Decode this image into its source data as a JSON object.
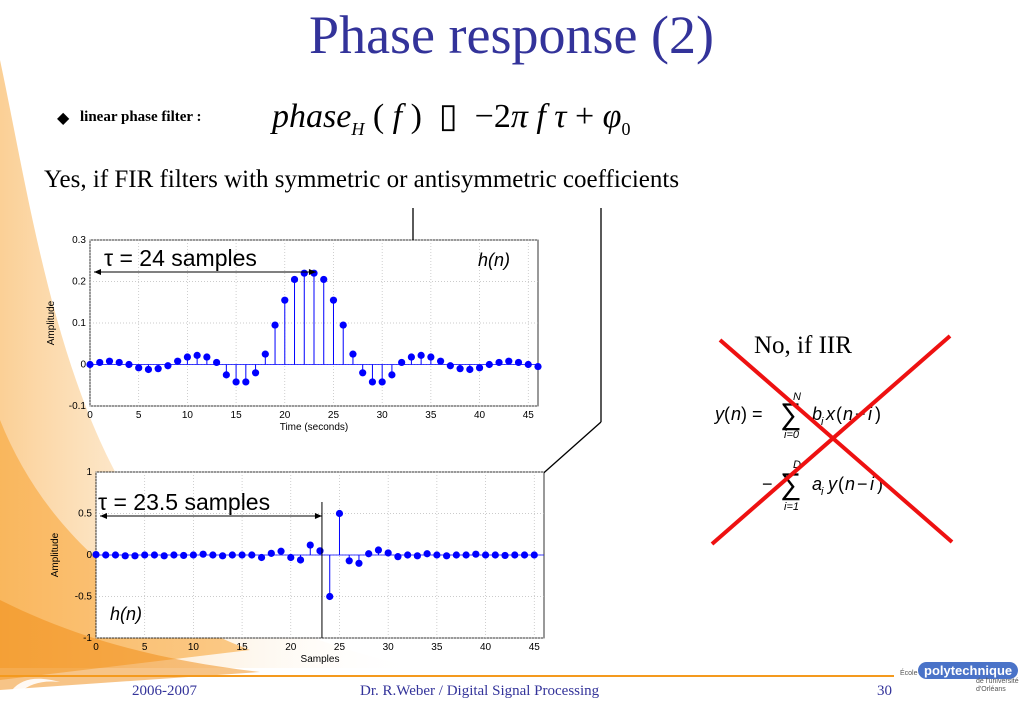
{
  "slide": {
    "title": "Phase response (2)",
    "bullet_label": "linear phase filter :",
    "yes_text": "Yes, if FIR filters with  symmetric or antisymmetric coefficients",
    "no_text": "No, if IIR"
  },
  "colors": {
    "title": "#33339a",
    "marker": "#0000ff",
    "cross": "#ee1111",
    "orange": "#f49a1e"
  },
  "chart_data": [
    {
      "type": "scatter",
      "style": "stem",
      "xlabel": "Time (seconds)",
      "ylabel": "Amplitude",
      "xlim": [
        0,
        46
      ],
      "ylim": [
        -0.1,
        0.3
      ],
      "xticks": [
        "0",
        "5",
        "10",
        "15",
        "20",
        "25",
        "30",
        "35",
        "40",
        "45"
      ],
      "yticks": [
        "-0.1",
        "0",
        "0.1",
        "0.2",
        "0.3"
      ],
      "tau_label": "τ = 24 samples",
      "h_label": "h(n)",
      "x": [
        0,
        1,
        2,
        3,
        4,
        5,
        6,
        7,
        8,
        9,
        10,
        11,
        12,
        13,
        14,
        15,
        16,
        17,
        18,
        19,
        20,
        21,
        22,
        23,
        24,
        25,
        26,
        27,
        28,
        29,
        30,
        31,
        32,
        33,
        34,
        35,
        36,
        37,
        38,
        39,
        40,
        41,
        42,
        43,
        44,
        45,
        46
      ],
      "values": [
        0,
        0.005,
        0.008,
        0.005,
        0,
        -0.008,
        -0.012,
        -0.01,
        -0.003,
        0.008,
        0.018,
        0.022,
        0.018,
        0.005,
        -0.025,
        -0.042,
        -0.042,
        -0.02,
        0.025,
        0.095,
        0.155,
        0.205,
        0.22,
        0.22,
        0.205,
        0.155,
        0.095,
        0.025,
        -0.02,
        -0.042,
        -0.042,
        -0.025,
        0.005,
        0.018,
        0.022,
        0.018,
        0.008,
        -0.003,
        -0.01,
        -0.012,
        -0.008,
        0,
        0.005,
        0.008,
        0.005,
        0,
        -0.005
      ]
    },
    {
      "type": "scatter",
      "style": "stem",
      "xlabel": "Samples",
      "ylabel": "Amplitude",
      "xlim": [
        0,
        46
      ],
      "ylim": [
        -1,
        1
      ],
      "xticks": [
        "0",
        "5",
        "10",
        "15",
        "20",
        "25",
        "30",
        "35",
        "40",
        "45"
      ],
      "yticks": [
        "-1",
        "-0.5",
        "0",
        "0.5",
        "1"
      ],
      "tau_label": "τ = 23.5 samples",
      "h_label": "h(n)",
      "x": [
        0,
        1,
        2,
        3,
        4,
        5,
        6,
        7,
        8,
        9,
        10,
        11,
        12,
        13,
        14,
        15,
        16,
        17,
        18,
        19,
        20,
        21,
        22,
        23,
        24,
        25,
        26,
        27,
        28,
        29,
        30,
        31,
        32,
        33,
        34,
        35,
        36,
        37,
        38,
        39,
        40,
        41,
        42,
        43,
        44,
        45
      ],
      "values": [
        0.005,
        0.0,
        0.0,
        -0.01,
        -0.01,
        0.0,
        0.0,
        -0.01,
        0.0,
        -0.005,
        0.0,
        0.01,
        0.0,
        -0.01,
        0.0,
        0.0,
        0.0,
        -0.03,
        0.02,
        0.045,
        -0.03,
        -0.06,
        0.12,
        0.05,
        -0.5,
        0.5,
        -0.07,
        -0.1,
        0.015,
        0.06,
        0.025,
        -0.02,
        0.0,
        -0.01,
        0.015,
        0.0,
        -0.01,
        0.0,
        0.0,
        0.01,
        0.0,
        0.0,
        -0.005,
        0.0,
        0.0,
        0.0
      ]
    }
  ],
  "iir": {
    "n_upper": "N",
    "i_lower": "i=0",
    "d_upper": "D",
    "i_lower2": "i=1"
  },
  "footer": {
    "date": "2006-2007",
    "author": "Dr. R.Weber / Digital Signal Processing",
    "page": "30",
    "logo_badge": "polytechnique",
    "logo_ecole": "École",
    "logo_sub": "de l'université d'Orléans"
  }
}
